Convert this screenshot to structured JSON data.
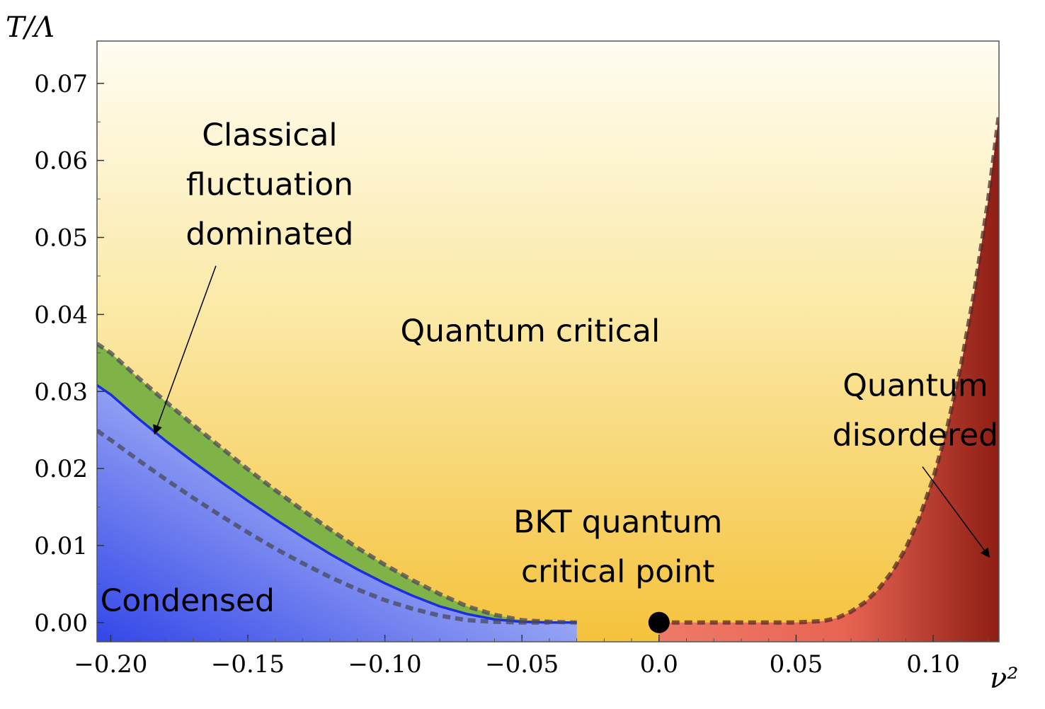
{
  "chart_data": {
    "type": "area",
    "title": "",
    "xlabel": "ν²",
    "ylabel": "T/Λ",
    "xlim": [
      -0.205,
      0.124
    ],
    "ylim": [
      -0.0025,
      0.0755
    ],
    "xticks": [
      -0.2,
      -0.15,
      -0.1,
      -0.05,
      0.0,
      0.05,
      0.1
    ],
    "xtick_labels": [
      "−0.20",
      "−0.15",
      "−0.10",
      "−0.05",
      "0.0",
      "0.05",
      "0.10"
    ],
    "yticks": [
      0.0,
      0.01,
      0.02,
      0.03,
      0.04,
      0.05,
      0.06,
      0.07
    ],
    "ytick_labels": [
      "0.00",
      "0.01",
      "0.02",
      "0.03",
      "0.04",
      "0.05",
      "0.06",
      "0.07"
    ],
    "series": [
      {
        "name": "",
        "style": "solid",
        "color": "#1a2ee0",
        "x": [
          -0.205,
          -0.2,
          -0.19,
          -0.18,
          -0.17,
          -0.16,
          -0.15,
          -0.14,
          -0.13,
          -0.12,
          -0.11,
          -0.1,
          -0.09,
          -0.08,
          -0.07,
          -0.06,
          -0.05,
          -0.04,
          -0.03
        ],
        "y": [
          0.0308,
          0.0296,
          0.0265,
          0.0236,
          0.0209,
          0.0183,
          0.0158,
          0.0134,
          0.0111,
          0.0089,
          0.0069,
          0.0051,
          0.0035,
          0.0021,
          0.0011,
          0.0004,
          0.0001,
          0.0,
          0.0
        ]
      },
      {
        "name": "",
        "style": "dashed",
        "color": "#4a4a5a",
        "x": [
          -0.205,
          -0.2,
          -0.19,
          -0.18,
          -0.17,
          -0.16,
          -0.15,
          -0.14,
          -0.13,
          -0.12,
          -0.11,
          -0.1,
          -0.09,
          -0.08,
          -0.07,
          -0.06,
          -0.05,
          -0.04,
          -0.03
        ],
        "y": [
          0.0362,
          0.035,
          0.0318,
          0.0287,
          0.0257,
          0.0228,
          0.0199,
          0.0172,
          0.0146,
          0.0121,
          0.0097,
          0.0075,
          0.0055,
          0.0037,
          0.0021,
          0.001,
          0.0003,
          0.0001,
          0.0
        ]
      },
      {
        "name": "",
        "style": "dashed",
        "color": "#4a4a5a",
        "x": [
          -0.205,
          -0.2,
          -0.19,
          -0.18,
          -0.17,
          -0.16,
          -0.15,
          -0.14,
          -0.13,
          -0.12,
          -0.11,
          -0.1,
          -0.09,
          -0.08,
          -0.07,
          -0.06,
          -0.05,
          -0.04
        ],
        "y": [
          0.0249,
          0.0237,
          0.0211,
          0.0186,
          0.0162,
          0.0139,
          0.0117,
          0.0096,
          0.0077,
          0.0059,
          0.0043,
          0.0029,
          0.0018,
          0.0009,
          0.0003,
          0.0001,
          0.0,
          0.0
        ]
      },
      {
        "name": "",
        "style": "dashed",
        "color": "#5a2a2a",
        "x": [
          0.0,
          0.05,
          0.06,
          0.065,
          0.07,
          0.075,
          0.08,
          0.085,
          0.09,
          0.095,
          0.1,
          0.105,
          0.11,
          0.115,
          0.12,
          0.124
        ],
        "y": [
          0.0,
          0.0,
          0.0002,
          0.0006,
          0.0014,
          0.0026,
          0.0043,
          0.0066,
          0.0096,
          0.0136,
          0.0187,
          0.0251,
          0.0331,
          0.0429,
          0.0547,
          0.066
        ]
      }
    ],
    "point": {
      "x": 0.0,
      "y": 0.0,
      "color": "#000000"
    },
    "regions": [
      {
        "id": "condensed",
        "label": "Condensed",
        "color": "#4f64ee"
      },
      {
        "id": "classical",
        "label": "Classical fluctuation dominated",
        "color": "#7fb347"
      },
      {
        "id": "critical",
        "label": "Quantum critical",
        "color": "#f5c54a"
      },
      {
        "id": "disordered",
        "label": "Quantum disordered",
        "color": "#e8604e"
      }
    ],
    "annotations": [
      {
        "id": "classical",
        "lines": [
          "Classical",
          "fluctuation",
          "dominated"
        ],
        "x": -0.142,
        "y": 0.0555,
        "arrow_to": [
          -0.184,
          0.0245
        ]
      },
      {
        "id": "critical",
        "lines": [
          "Quantum critical"
        ],
        "x": -0.047,
        "y": 0.0365
      },
      {
        "id": "disordered",
        "lines": [
          "Quantum",
          "disordered"
        ],
        "x": 0.0935,
        "y": 0.0262,
        "arrow_to": [
          0.1205,
          0.0085
        ]
      },
      {
        "id": "bkt",
        "lines": [
          "BKT quantum",
          "critical point"
        ],
        "x": -0.015,
        "y": 0.0085
      },
      {
        "id": "condensed",
        "lines": [
          "Condensed"
        ],
        "x": -0.172,
        "y": 0.0015
      }
    ]
  }
}
